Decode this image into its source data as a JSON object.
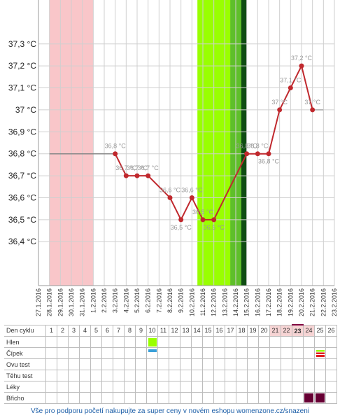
{
  "colors": {
    "line": "#c0282d",
    "point": "#c0282d",
    "period": "#f9c6c9",
    "fertile_light": "#99ff00",
    "fertile_mid": "#5fbf2a",
    "fertile_dark": "#0f4d13",
    "grid": "#cfcfcf",
    "ovu_icon": "#3aa0d9",
    "cervix_icon": "#e02020",
    "belly_icon": "#660033"
  },
  "chart_data": {
    "type": "line",
    "title": "",
    "xlabel": "",
    "ylabel": "",
    "ylim": [
      36.2,
      37.5
    ],
    "yticks": [
      "37,3 °C",
      "37,2 °C",
      "37,1 °C",
      "37 °C",
      "36,9 °C",
      "36,8 °C",
      "36,7 °C",
      "36,6 °C",
      "36,5 °C",
      "36,4 °C"
    ],
    "ytick_values": [
      37.3,
      37.2,
      37.1,
      37.0,
      36.9,
      36.8,
      36.7,
      36.6,
      36.5,
      36.4
    ],
    "categories": [
      "27.1.2016",
      "28.1.2016",
      "29.1.2016",
      "30.1.2016",
      "31.1.2016",
      "1.2.2016",
      "2.2.2016",
      "3.2.2016",
      "4.2.2016",
      "5.2.2016",
      "6.2.2016",
      "7.2.2016",
      "8.2.2016",
      "9.2.2016",
      "10.2.2016",
      "11.2.2016",
      "12.2.2016",
      "13.2.2016",
      "14.2.2016",
      "15.2.2016",
      "16.2.2016",
      "17.2.2016",
      "18.2.2016",
      "19.2.2016",
      "20.2.2016",
      "21.2.2016",
      "22.2.2016",
      "23.2.2016"
    ],
    "baseline_value": 36.8,
    "baseline_from_index": 1,
    "baseline_to_index": 7,
    "points": [
      {
        "i": 7,
        "y": 36.8,
        "label": "36,8 °C"
      },
      {
        "i": 8,
        "y": 36.7,
        "label": "36,7 °C"
      },
      {
        "i": 9,
        "y": 36.7,
        "label": "36,7 °C"
      },
      {
        "i": 10,
        "y": 36.7,
        "label": "36,7 °C"
      },
      {
        "i": 12,
        "y": 36.6,
        "label": "36,6 °C"
      },
      {
        "i": 13,
        "y": 36.5,
        "label": "36,5 °C"
      },
      {
        "i": 14,
        "y": 36.6,
        "label": "36,6 °C"
      },
      {
        "i": 15,
        "y": 36.5,
        "label": "36,5 °C"
      },
      {
        "i": 16,
        "y": 36.5,
        "label": "36,5 °C"
      },
      {
        "i": 19,
        "y": 36.8,
        "label": "36,8 °C"
      },
      {
        "i": 20,
        "y": 36.8,
        "label": "36,8 °C"
      },
      {
        "i": 21,
        "y": 36.8,
        "label": "36,8 °C"
      },
      {
        "i": 22,
        "y": 37.0,
        "label": "37 °C"
      },
      {
        "i": 23,
        "y": 37.1,
        "label": "37,1 °C"
      },
      {
        "i": 24,
        "y": 37.2,
        "label": "37,2 °C"
      },
      {
        "i": 25,
        "y": 37.0,
        "label": "37 °C"
      }
    ],
    "tail_to_index": 26,
    "period_band": [
      1,
      5
    ],
    "fertile_light_band": [
      14.5,
      18.5
    ],
    "fertile_mid_band": [
      17.5,
      18.5
    ],
    "fertile_dark_band": [
      18.5,
      19
    ]
  },
  "table": {
    "rows": [
      {
        "label": "Den cyklu"
      },
      {
        "label": "Hlen"
      },
      {
        "label": "Čípek"
      },
      {
        "label": "Ovu test"
      },
      {
        "label": "Těhu test"
      },
      {
        "label": "Léky"
      },
      {
        "label": "Břicho"
      }
    ],
    "days": [
      "1",
      "2",
      "3",
      "4",
      "5",
      "6",
      "7",
      "8",
      "9",
      "10",
      "11",
      "12",
      "13",
      "14",
      "15",
      "16",
      "17",
      "18",
      "19",
      "20",
      "21",
      "22",
      "23",
      "24",
      "25",
      "26"
    ],
    "pink_days": [
      21,
      22,
      23,
      24
    ],
    "today_day": 23,
    "hlen_day": 10,
    "cipek_ovu_day": 10,
    "cipek_day": 25,
    "bricho_days": [
      24,
      25
    ]
  },
  "footer": "Vše pro podporu početí nakupujte za super ceny v novém eshopu womenzone.cz/snazeni"
}
